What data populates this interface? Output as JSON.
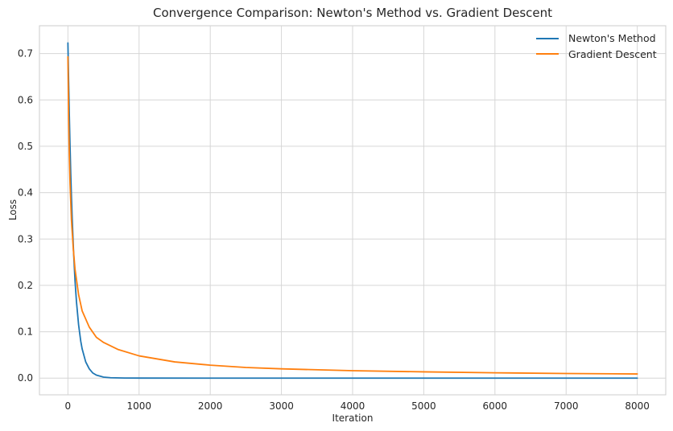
{
  "chart_data": {
    "type": "line",
    "title": "Convergence Comparison: Newton's Method vs. Gradient Descent",
    "xlabel": "Iteration",
    "ylabel": "Loss",
    "xlim": [
      -400,
      8400
    ],
    "ylim": [
      -0.036,
      0.76
    ],
    "xticks": [
      0,
      1000,
      2000,
      3000,
      4000,
      5000,
      6000,
      7000,
      8000
    ],
    "yticks": [
      0.0,
      0.1,
      0.2,
      0.3,
      0.4,
      0.5,
      0.6,
      0.7
    ],
    "xtick_labels": [
      "0",
      "1000",
      "2000",
      "3000",
      "4000",
      "5000",
      "6000",
      "7000",
      "8000"
    ],
    "ytick_labels": [
      "0.0",
      "0.1",
      "0.2",
      "0.3",
      "0.4",
      "0.5",
      "0.6",
      "0.7"
    ],
    "grid": true,
    "legend_position": "top-right",
    "series": [
      {
        "name": "Newton's Method",
        "color": "#1f77b4",
        "x": [
          0,
          10,
          20,
          30,
          40,
          50,
          60,
          80,
          100,
          120,
          150,
          180,
          200,
          250,
          300,
          350,
          400,
          500,
          600,
          800,
          1000,
          2000,
          4000,
          6000,
          8000
        ],
        "y": [
          0.723,
          0.64,
          0.565,
          0.5,
          0.44,
          0.39,
          0.345,
          0.27,
          0.21,
          0.165,
          0.115,
          0.08,
          0.063,
          0.035,
          0.02,
          0.011,
          0.0065,
          0.0022,
          0.0008,
          0.0002,
          0.0001,
          0.0,
          0.0,
          0.0,
          0.0
        ]
      },
      {
        "name": "Gradient Descent",
        "color": "#ff7f0e",
        "x": [
          0,
          10,
          20,
          30,
          50,
          75,
          100,
          150,
          200,
          300,
          400,
          500,
          700,
          1000,
          1500,
          2000,
          2500,
          3000,
          4000,
          5000,
          6000,
          7000,
          8000
        ],
        "y": [
          0.693,
          0.56,
          0.48,
          0.42,
          0.34,
          0.28,
          0.235,
          0.18,
          0.145,
          0.11,
          0.088,
          0.077,
          0.062,
          0.048,
          0.035,
          0.028,
          0.023,
          0.02,
          0.016,
          0.0135,
          0.0115,
          0.01,
          0.009
        ]
      }
    ]
  }
}
